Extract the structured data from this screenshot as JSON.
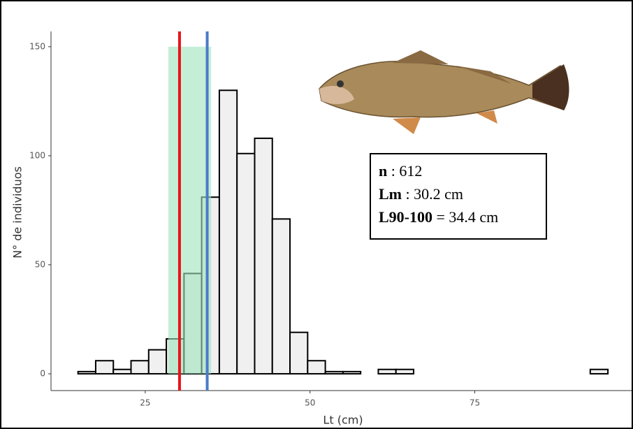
{
  "chart_data": {
    "type": "histogram",
    "x_label": "Lt (cm)",
    "y_label": "N° de individuos",
    "bins": [
      14.8,
      17.48,
      20.16,
      22.84,
      25.52,
      28.2,
      30.88,
      33.56,
      36.24,
      38.92,
      41.6,
      44.28,
      46.96,
      49.64,
      52.32,
      55.0,
      57.68,
      60.36,
      63.04,
      65.72,
      68.4,
      71.08,
      73.76,
      76.44,
      79.12,
      81.8,
      84.48,
      87.16,
      89.84,
      92.52,
      95.2
    ],
    "values": [
      1,
      6,
      2,
      6,
      11,
      16,
      46,
      81,
      130,
      101,
      108,
      71,
      19,
      6,
      1,
      1,
      0,
      2,
      2,
      0,
      0,
      0,
      0,
      0,
      0,
      0,
      0,
      0,
      0,
      2
    ],
    "color": "#f0f0f0",
    "edge_color": "#000000",
    "xlim": [
      10.7,
      98.9
    ],
    "ylim": [
      -7.7,
      157
    ],
    "xticks": [
      25,
      50,
      75
    ],
    "yticks": [
      0,
      50,
      100,
      150
    ],
    "shaded_band": {
      "x": [
        28.5,
        35.0
      ],
      "y": 150,
      "color": "#9ee2bd"
    },
    "vlines": [
      {
        "value": 30.2,
        "color": "#e8141a"
      },
      {
        "value": 34.4,
        "color": "#4a7bc8"
      }
    ],
    "annotation": [
      {
        "label": "n",
        "text": " : 612"
      },
      {
        "label": "Lm",
        "text": " : 30.2 cm"
      },
      {
        "label": "L90-100",
        "text": " = 34.4 cm"
      }
    ]
  }
}
